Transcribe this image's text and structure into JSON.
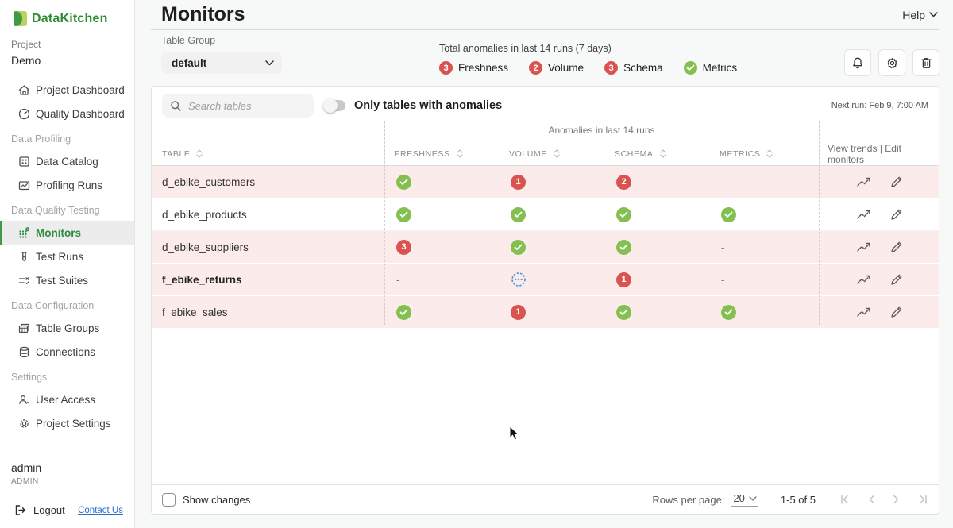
{
  "app": {
    "logo_text": "DataKitchen"
  },
  "sidebar": {
    "project_label": "Project",
    "project_name": "Demo",
    "sections": {
      "profiling": "Data Profiling",
      "testing": "Data Quality Testing",
      "configuration": "Data Configuration",
      "settings": "Settings"
    },
    "nav": [
      {
        "label": "Project Dashboard",
        "icon": "home-icon"
      },
      {
        "label": "Quality Dashboard",
        "icon": "gauge-icon"
      },
      {
        "label": "Data Catalog",
        "icon": "catalog-grid-icon"
      },
      {
        "label": "Profiling Runs",
        "icon": "chart-panel-icon"
      },
      {
        "label": "Monitors",
        "icon": "monitors-dots-icon",
        "active": true
      },
      {
        "label": "Test Runs",
        "icon": "test-tube-icon"
      },
      {
        "label": "Test Suites",
        "icon": "checklist-icon"
      },
      {
        "label": "Table Groups",
        "icon": "table-groups-icon"
      },
      {
        "label": "Connections",
        "icon": "database-icon"
      },
      {
        "label": "User Access",
        "icon": "users-icon"
      },
      {
        "label": "Project Settings",
        "icon": "gear-icon"
      }
    ],
    "user": {
      "name": "admin",
      "role": "ADMIN"
    },
    "logout_label": "Logout",
    "contact_label": "Contact Us"
  },
  "header": {
    "title": "Monitors",
    "help_label": "Help"
  },
  "controls": {
    "table_group_label": "Table Group",
    "table_group_value": "default",
    "summary_title": "Total anomalies in last 14 runs (7 days)",
    "summary": [
      {
        "label": "Freshness",
        "status": "count",
        "count": 3
      },
      {
        "label": "Volume",
        "status": "count",
        "count": 2
      },
      {
        "label": "Schema",
        "status": "count",
        "count": 3
      },
      {
        "label": "Metrics",
        "status": "ok"
      }
    ],
    "action_icons": [
      "bell-icon",
      "gear-icon",
      "trash-icon"
    ]
  },
  "table": {
    "search_placeholder": "Search tables",
    "toggle_label": "Only tables with anomalies",
    "toggle_on": false,
    "next_run": "Next run: Feb 9, 7:00 AM",
    "group_header": "Anomalies in last 14 runs",
    "columns": [
      {
        "key": "table",
        "label": "TABLE"
      },
      {
        "key": "freshness",
        "label": "FRESHNESS"
      },
      {
        "key": "volume",
        "label": "VOLUME"
      },
      {
        "key": "schema",
        "label": "SCHEMA"
      },
      {
        "key": "metrics",
        "label": "METRICS"
      }
    ],
    "actions_header": "View trends | Edit monitors",
    "rows": [
      {
        "table": "d_ebike_customers",
        "bold": false,
        "highlight": true,
        "freshness": {
          "status": "ok"
        },
        "volume": {
          "status": "count",
          "count": 1
        },
        "schema": {
          "status": "count",
          "count": 2
        },
        "metrics": {
          "status": "none"
        }
      },
      {
        "table": "d_ebike_products",
        "bold": false,
        "highlight": false,
        "freshness": {
          "status": "ok"
        },
        "volume": {
          "status": "ok"
        },
        "schema": {
          "status": "ok"
        },
        "metrics": {
          "status": "ok"
        }
      },
      {
        "table": "d_ebike_suppliers",
        "bold": false,
        "highlight": true,
        "freshness": {
          "status": "count",
          "count": 3
        },
        "volume": {
          "status": "ok"
        },
        "schema": {
          "status": "ok"
        },
        "metrics": {
          "status": "none"
        }
      },
      {
        "table": "f_ebike_returns",
        "bold": true,
        "highlight": true,
        "freshness": {
          "status": "none"
        },
        "volume": {
          "status": "pending"
        },
        "schema": {
          "status": "count",
          "count": 1
        },
        "metrics": {
          "status": "none"
        }
      },
      {
        "table": "f_ebike_sales",
        "bold": false,
        "highlight": true,
        "freshness": {
          "status": "ok"
        },
        "volume": {
          "status": "count",
          "count": 1
        },
        "schema": {
          "status": "ok"
        },
        "metrics": {
          "status": "ok"
        }
      }
    ]
  },
  "footer": {
    "show_changes_label": "Show changes",
    "show_changes_checked": false,
    "rows_per_page_label": "Rows per page:",
    "rows_per_page_value": "20",
    "range_label": "1-5 of 5"
  },
  "colors": {
    "ok_green": "#84c051",
    "alert_red": "#d9534f",
    "pending_blue": "#4a90d9",
    "row_highlight": "#fbeceb",
    "accent_green": "#2e8b3e",
    "link_blue": "#2a6fc9"
  }
}
